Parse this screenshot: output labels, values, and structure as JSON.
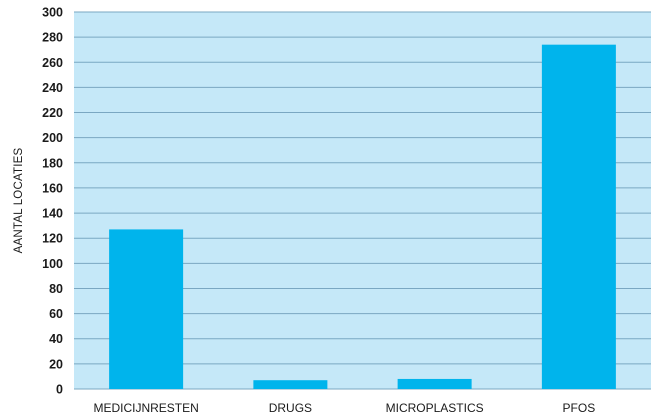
{
  "chart_data": {
    "type": "bar",
    "categories": [
      "MEDICIJNRESTEN",
      "DRUGS",
      "MICROPLASTICS",
      "PFOS"
    ],
    "values": [
      127,
      7,
      8,
      274
    ],
    "title": "",
    "xlabel": "",
    "ylabel": "AANTAL LOCATIES",
    "ylim": [
      0,
      300
    ],
    "yticks": [
      0,
      20,
      40,
      60,
      80,
      100,
      120,
      140,
      160,
      180,
      200,
      220,
      240,
      260,
      280,
      300
    ],
    "grid": true,
    "legend": "none",
    "colors": {
      "plot_background": "#c5e8f8",
      "bar": "#00b4ec",
      "gridline": "#7aa7c2"
    }
  }
}
